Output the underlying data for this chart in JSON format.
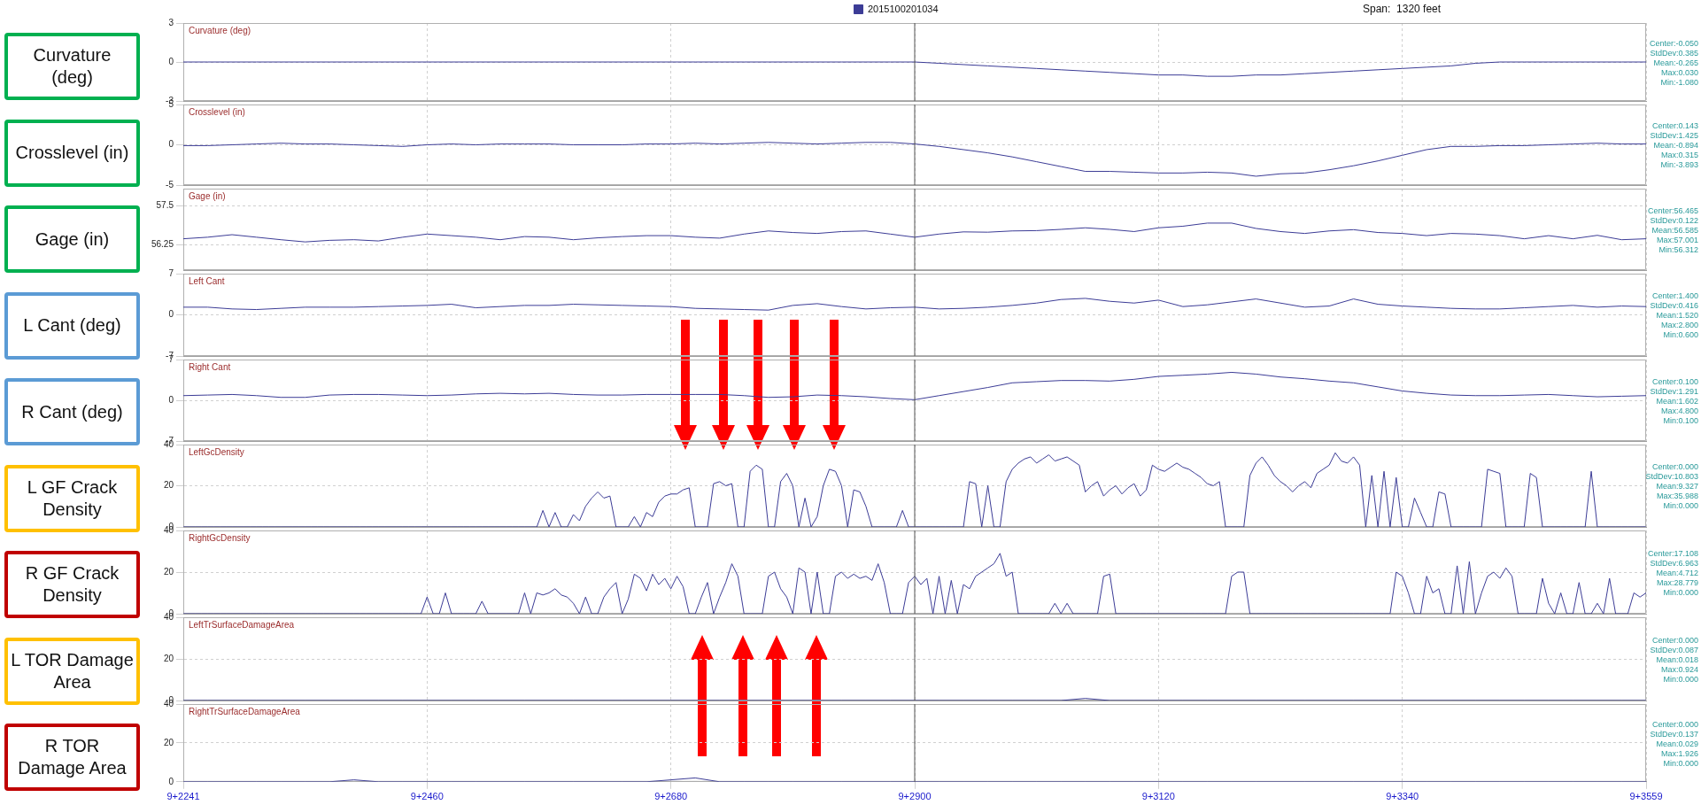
{
  "chart_data": [
    {
      "type": "line",
      "title": "Curvature (deg)",
      "subtitle": "Span:  1320 feet",
      "ylabel": "Curvature (deg)",
      "legend": "top",
      "grid": true,
      "tick_labels": "y",
      "ylim": [
        -3,
        3
      ],
      "yticks": [
        -3,
        0,
        3
      ],
      "categories": [
        "9+2241",
        null,
        null,
        null,
        null,
        null,
        null,
        null,
        null,
        null,
        "9+2460",
        null,
        null,
        null,
        null,
        null,
        null,
        null,
        null,
        null,
        "9+2680",
        null,
        null,
        null,
        null,
        null,
        null,
        null,
        null,
        null,
        "9+2900",
        null,
        null,
        null,
        null,
        null,
        null,
        null,
        null,
        null,
        "9+3120",
        null,
        null,
        null,
        null,
        null,
        null,
        null,
        null,
        null,
        "9+3340",
        null,
        null,
        null,
        null,
        null,
        null,
        null,
        null,
        null,
        "9+3559"
      ],
      "series": [
        {
          "name": "2015100201034",
          "color": "#3c3c96",
          "values": [
            0,
            0,
            0,
            0,
            0,
            0,
            0,
            0,
            0,
            0,
            0,
            0,
            0,
            0,
            0,
            0,
            0,
            0,
            0,
            0,
            0,
            0,
            0,
            0,
            0,
            0,
            0,
            0,
            0,
            0,
            0,
            -0.1,
            -0.2,
            -0.3,
            -0.4,
            -0.5,
            -0.6,
            -0.7,
            -0.8,
            -0.9,
            -1.0,
            -1.0,
            -1.1,
            -1.1,
            -1.0,
            -1.0,
            -0.9,
            -0.8,
            -0.7,
            -0.6,
            -0.5,
            -0.4,
            -0.3,
            -0.1,
            0,
            0,
            0,
            0,
            0,
            0,
            0
          ]
        }
      ],
      "ref_lines": [
        {
          "axis": "x",
          "value": "9+2900",
          "color": "#555555"
        }
      ],
      "annotations": [
        "Center:-0.050",
        "StdDev:0.385",
        "Mean:-0.265",
        "Max:0.030",
        "Min:-1.080"
      ]
    },
    {
      "type": "line",
      "title": "Crosslevel (in)",
      "ylabel": "Crosslevel (in)",
      "grid": true,
      "tick_labels": "y",
      "ylim": [
        -5,
        5
      ],
      "yticks": [
        -5,
        0,
        5
      ],
      "categories": [
        "9+2241",
        null,
        null,
        null,
        null,
        null,
        null,
        null,
        null,
        null,
        "9+2460",
        null,
        null,
        null,
        null,
        null,
        null,
        null,
        null,
        null,
        "9+2680",
        null,
        null,
        null,
        null,
        null,
        null,
        null,
        null,
        null,
        "9+2900",
        null,
        null,
        null,
        null,
        null,
        null,
        null,
        null,
        null,
        "9+3120",
        null,
        null,
        null,
        null,
        null,
        null,
        null,
        null,
        null,
        "9+3340",
        null,
        null,
        null,
        null,
        null,
        null,
        null,
        null,
        null,
        "9+3559"
      ],
      "color": "#3c3c96",
      "values": [
        -0.1,
        -0.1,
        0,
        0.1,
        0.2,
        0.1,
        0.1,
        0,
        -0.1,
        -0.2,
        0,
        0.1,
        0,
        0.1,
        0.1,
        0.1,
        0,
        0,
        0,
        0.1,
        0.1,
        0.2,
        0.1,
        0.2,
        0.3,
        0.2,
        0.1,
        0.2,
        0.3,
        0.3,
        0.1,
        -0.2,
        -0.6,
        -1.0,
        -1.5,
        -2.1,
        -2.7,
        -3.3,
        -3.3,
        -3.4,
        -3.5,
        -3.5,
        -3.4,
        -3.5,
        -3.9,
        -3.6,
        -3.5,
        -3.1,
        -2.6,
        -2.0,
        -1.3,
        -0.6,
        -0.2,
        -0.2,
        -0.1,
        -0.1,
        0,
        0.1,
        0.2,
        0.1,
        0.1
      ],
      "ref_lines": [
        {
          "axis": "x",
          "value": "9+2900",
          "color": "#555555"
        }
      ],
      "annotations": [
        "Center:0.143",
        "StdDev:1.425",
        "Mean:-0.894",
        "Max:0.315",
        "Min:-3.893"
      ]
    },
    {
      "type": "line",
      "title": "Gage (in)",
      "ylabel": "Gage (in)",
      "grid": true,
      "tick_labels": "y",
      "ylim": [
        55.45,
        58.05
      ],
      "yticks": [
        56.25,
        57.5
      ],
      "categories": [
        "9+2241",
        null,
        null,
        null,
        null,
        null,
        null,
        null,
        null,
        null,
        "9+2460",
        null,
        null,
        null,
        null,
        null,
        null,
        null,
        null,
        null,
        "9+2680",
        null,
        null,
        null,
        null,
        null,
        null,
        null,
        null,
        null,
        "9+2900",
        null,
        null,
        null,
        null,
        null,
        null,
        null,
        null,
        null,
        "9+3120",
        null,
        null,
        null,
        null,
        null,
        null,
        null,
        null,
        null,
        "9+3340",
        null,
        null,
        null,
        null,
        null,
        null,
        null,
        null,
        null,
        "9+3559"
      ],
      "color": "#3c3c96",
      "values": [
        56.45,
        56.5,
        56.58,
        56.5,
        56.42,
        56.35,
        56.4,
        56.42,
        56.38,
        56.5,
        56.6,
        56.55,
        56.5,
        56.42,
        56.52,
        56.5,
        56.42,
        56.48,
        56.52,
        56.55,
        56.55,
        56.5,
        56.47,
        56.6,
        56.7,
        56.65,
        56.62,
        56.68,
        56.7,
        56.6,
        56.5,
        56.6,
        56.67,
        56.66,
        56.7,
        56.71,
        56.75,
        56.8,
        56.75,
        56.68,
        56.8,
        56.85,
        56.95,
        56.95,
        56.78,
        56.68,
        56.62,
        56.7,
        56.74,
        56.65,
        56.62,
        56.55,
        56.62,
        56.6,
        56.55,
        56.45,
        56.55,
        56.45,
        56.56,
        56.42,
        56.45
      ],
      "ref_lines": [
        {
          "axis": "x",
          "value": "9+2900",
          "color": "#555555"
        }
      ],
      "annotations": [
        "Center:56.465",
        "StdDev:0.122",
        "Mean:56.585",
        "Max:57.001",
        "Min:56.312"
      ]
    },
    {
      "type": "line",
      "title": "Left Cant",
      "ylabel": "L Cant (deg)",
      "grid": true,
      "tick_labels": "y",
      "ylim": [
        -7,
        7
      ],
      "yticks": [
        -7,
        0,
        7
      ],
      "categories": [
        "9+2241",
        null,
        null,
        null,
        null,
        null,
        null,
        null,
        null,
        null,
        "9+2460",
        null,
        null,
        null,
        null,
        null,
        null,
        null,
        null,
        null,
        "9+2680",
        null,
        null,
        null,
        null,
        null,
        null,
        null,
        null,
        null,
        "9+2900",
        null,
        null,
        null,
        null,
        null,
        null,
        null,
        null,
        null,
        "9+3120",
        null,
        null,
        null,
        null,
        null,
        null,
        null,
        null,
        null,
        "9+3340",
        null,
        null,
        null,
        null,
        null,
        null,
        null,
        null,
        null,
        "9+3559"
      ],
      "color": "#3c3c96",
      "values": [
        1.3,
        1.3,
        1.0,
        0.9,
        1.1,
        1.3,
        1.3,
        1.3,
        1.4,
        1.5,
        1.6,
        1.8,
        1.2,
        1.4,
        1.6,
        1.6,
        1.8,
        1.7,
        1.6,
        1.5,
        1.4,
        1.1,
        1.0,
        0.9,
        0.8,
        1.6,
        1.9,
        1.4,
        1.0,
        1.2,
        1.3,
        1.0,
        1.1,
        1.3,
        1.6,
        2.0,
        2.6,
        2.8,
        2.3,
        2.0,
        2.5,
        1.4,
        1.7,
        2.2,
        2.7,
        2.0,
        1.3,
        1.5,
        2.7,
        1.8,
        1.5,
        1.3,
        1.1,
        1.0,
        1.0,
        1.2,
        1.4,
        1.6,
        1.3,
        1.5,
        1.4
      ],
      "ref_lines": [
        {
          "axis": "x",
          "value": "9+2900",
          "color": "#555555"
        }
      ],
      "annotations": [
        "Center:1.400",
        "StdDev:0.416",
        "Mean:1.520",
        "Max:2.800",
        "Min:0.600"
      ]
    },
    {
      "type": "line",
      "title": "Right Cant",
      "ylabel": "R Cant (deg)",
      "grid": true,
      "tick_labels": "y",
      "ylim": [
        -7,
        7
      ],
      "yticks": [
        -7,
        0,
        7
      ],
      "categories": [
        "9+2241",
        null,
        null,
        null,
        null,
        null,
        null,
        null,
        null,
        null,
        "9+2460",
        null,
        null,
        null,
        null,
        null,
        null,
        null,
        null,
        null,
        "9+2680",
        null,
        null,
        null,
        null,
        null,
        null,
        null,
        null,
        null,
        "9+2900",
        null,
        null,
        null,
        null,
        null,
        null,
        null,
        null,
        null,
        "9+3120",
        null,
        null,
        null,
        null,
        null,
        null,
        null,
        null,
        null,
        "9+3340",
        null,
        null,
        null,
        null,
        null,
        null,
        null,
        null,
        null,
        "9+3559"
      ],
      "color": "#3c3c96",
      "values": [
        0.8,
        0.9,
        1.0,
        0.8,
        0.5,
        0.5,
        0.9,
        1.0,
        1.0,
        0.9,
        0.8,
        0.9,
        1.1,
        1.2,
        1.1,
        1.2,
        1.0,
        0.9,
        0.9,
        1.0,
        1.0,
        1.0,
        1.0,
        0.8,
        0.5,
        0.6,
        0.9,
        0.8,
        0.6,
        0.3,
        0.1,
        0.8,
        1.5,
        2.2,
        3.0,
        3.2,
        3.4,
        3.4,
        3.3,
        3.6,
        4.1,
        4.3,
        4.5,
        4.8,
        4.5,
        4.0,
        3.7,
        3.3,
        3.0,
        2.3,
        1.6,
        1.2,
        0.9,
        0.8,
        0.8,
        0.9,
        1.0,
        0.8,
        0.6,
        0.7,
        0.8
      ],
      "ref_lines": [
        {
          "axis": "x",
          "value": "9+2900",
          "color": "#555555"
        }
      ],
      "annotations": [
        "Center:0.100",
        "StdDev:1.291",
        "Mean:1.602",
        "Max:4.800",
        "Min:0.100"
      ]
    },
    {
      "type": "line",
      "title": "LeftGcDensity",
      "ylabel": "L GF Crack Density",
      "grid": true,
      "tick_labels": "y",
      "ylim": [
        0,
        40
      ],
      "yticks": [
        0,
        20,
        40
      ],
      "categories": [
        "9+2241",
        null,
        null,
        null,
        null,
        null,
        null,
        null,
        null,
        null,
        null,
        null,
        null,
        null,
        null,
        null,
        null,
        null,
        null,
        null,
        null,
        null,
        null,
        null,
        null,
        null,
        null,
        null,
        null,
        null,
        null,
        null,
        null,
        null,
        null,
        null,
        null,
        null,
        null,
        null,
        "9+2460",
        null,
        null,
        null,
        null,
        null,
        null,
        null,
        null,
        null,
        null,
        null,
        null,
        null,
        null,
        null,
        null,
        null,
        null,
        null,
        null,
        null,
        null,
        null,
        null,
        null,
        null,
        null,
        null,
        null,
        null,
        null,
        null,
        null,
        null,
        null,
        null,
        null,
        null,
        null,
        "9+2680",
        null,
        null,
        null,
        null,
        null,
        null,
        null,
        null,
        null,
        null,
        null,
        null,
        null,
        null,
        null,
        null,
        null,
        null,
        null,
        null,
        null,
        null,
        null,
        null,
        null,
        null,
        null,
        null,
        null,
        null,
        null,
        null,
        null,
        null,
        null,
        null,
        null,
        null,
        null,
        "9+2900",
        null,
        null,
        null,
        null,
        null,
        null,
        null,
        null,
        null,
        null,
        null,
        null,
        null,
        null,
        null,
        null,
        null,
        null,
        null,
        null,
        null,
        null,
        null,
        null,
        null,
        null,
        null,
        null,
        null,
        null,
        null,
        null,
        null,
        null,
        null,
        null,
        null,
        null,
        null,
        "9+3120",
        null,
        null,
        null,
        null,
        null,
        null,
        null,
        null,
        null,
        null,
        null,
        null,
        null,
        null,
        null,
        null,
        null,
        null,
        null,
        null,
        null,
        null,
        null,
        null,
        null,
        null,
        null,
        null,
        null,
        null,
        null,
        null,
        null,
        null,
        null,
        null,
        null,
        null,
        null,
        "9+3340",
        null,
        null,
        null,
        null,
        null,
        null,
        null,
        null,
        null,
        null,
        null,
        null,
        null,
        null,
        null,
        null,
        null,
        null,
        null,
        null,
        null,
        null,
        null,
        null,
        null,
        null,
        null,
        null,
        null,
        null,
        null,
        null,
        null,
        null,
        null,
        null,
        null,
        null,
        null,
        "9+3559"
      ],
      "color": "#3c3c96",
      "values": [
        0,
        0,
        0,
        0,
        0,
        0,
        0,
        0,
        0,
        0,
        0,
        0,
        0,
        0,
        0,
        0,
        0,
        0,
        0,
        0,
        0,
        0,
        0,
        0,
        0,
        0,
        0,
        0,
        0,
        0,
        0,
        0,
        0,
        0,
        0,
        0,
        0,
        0,
        0,
        0,
        0,
        0,
        0,
        0,
        0,
        0,
        0,
        0,
        0,
        0,
        0,
        0,
        0,
        0,
        0,
        0,
        0,
        0,
        0,
        8,
        0,
        7,
        0,
        0,
        6,
        3,
        10,
        14,
        17,
        14,
        15,
        0,
        0,
        0,
        5,
        0,
        7,
        5,
        12,
        15,
        16,
        16,
        18,
        19,
        0,
        0,
        0,
        21,
        22,
        20,
        21,
        0,
        0,
        27,
        30,
        28,
        0,
        0,
        22,
        26,
        20,
        0,
        14,
        0,
        5,
        20,
        28,
        27,
        20,
        0,
        18,
        17,
        10,
        0,
        0,
        0,
        0,
        0,
        8,
        0,
        0,
        0,
        0,
        0,
        0,
        0,
        0,
        0,
        0,
        22,
        21,
        0,
        20,
        0,
        0,
        22,
        28,
        31,
        33,
        34,
        31,
        33,
        35,
        32,
        33,
        34,
        32,
        30,
        17,
        20,
        22,
        15,
        18,
        20,
        16,
        19,
        21,
        15,
        18,
        30,
        28,
        27,
        29,
        31,
        29,
        28,
        26,
        24,
        21,
        20,
        22,
        0,
        0,
        0,
        0,
        25,
        31,
        34,
        30,
        25,
        22,
        20,
        17,
        20,
        22,
        19,
        26,
        28,
        30,
        36,
        32,
        31,
        34,
        30,
        0,
        25,
        0,
        27,
        0,
        24,
        0,
        0,
        14,
        7,
        0,
        0,
        17,
        16,
        0,
        0,
        0,
        0,
        0,
        0,
        28,
        27,
        26,
        0,
        0,
        0,
        0,
        26,
        24,
        0,
        0,
        0,
        0,
        0,
        0,
        0,
        0,
        27,
        0,
        0,
        0,
        0,
        0,
        0,
        0,
        0,
        0
      ],
      "ref_lines": [
        {
          "axis": "x",
          "value": "9+2900",
          "color": "#555555"
        }
      ],
      "annotations": [
        "Center:0.000",
        "StdDev:10.803",
        "Mean:9.327",
        "Max:35.988",
        "Min:0.000"
      ]
    },
    {
      "type": "line",
      "title": "RightGcDensity",
      "ylabel": "R GF Crack Density",
      "grid": true,
      "tick_labels": "y",
      "ylim": [
        0,
        40
      ],
      "yticks": [
        0,
        20,
        40
      ],
      "categories": [
        "9+2241",
        null,
        null,
        null,
        null,
        null,
        null,
        null,
        null,
        null,
        null,
        null,
        null,
        null,
        null,
        null,
        null,
        null,
        null,
        null,
        null,
        null,
        null,
        null,
        null,
        null,
        null,
        null,
        null,
        null,
        null,
        null,
        null,
        null,
        null,
        null,
        null,
        null,
        null,
        null,
        "9+2460",
        null,
        null,
        null,
        null,
        null,
        null,
        null,
        null,
        null,
        null,
        null,
        null,
        null,
        null,
        null,
        null,
        null,
        null,
        null,
        null,
        null,
        null,
        null,
        null,
        null,
        null,
        null,
        null,
        null,
        null,
        null,
        null,
        null,
        null,
        null,
        null,
        null,
        null,
        null,
        "9+2680",
        null,
        null,
        null,
        null,
        null,
        null,
        null,
        null,
        null,
        null,
        null,
        null,
        null,
        null,
        null,
        null,
        null,
        null,
        null,
        null,
        null,
        null,
        null,
        null,
        null,
        null,
        null,
        null,
        null,
        null,
        null,
        null,
        null,
        null,
        null,
        null,
        null,
        null,
        null,
        "9+2900",
        null,
        null,
        null,
        null,
        null,
        null,
        null,
        null,
        null,
        null,
        null,
        null,
        null,
        null,
        null,
        null,
        null,
        null,
        null,
        null,
        null,
        null,
        null,
        null,
        null,
        null,
        null,
        null,
        null,
        null,
        null,
        null,
        null,
        null,
        null,
        null,
        null,
        null,
        null,
        "9+3120",
        null,
        null,
        null,
        null,
        null,
        null,
        null,
        null,
        null,
        null,
        null,
        null,
        null,
        null,
        null,
        null,
        null,
        null,
        null,
        null,
        null,
        null,
        null,
        null,
        null,
        null,
        null,
        null,
        null,
        null,
        null,
        null,
        null,
        null,
        null,
        null,
        null,
        null,
        null,
        "9+3340",
        null,
        null,
        null,
        null,
        null,
        null,
        null,
        null,
        null,
        null,
        null,
        null,
        null,
        null,
        null,
        null,
        null,
        null,
        null,
        null,
        null,
        null,
        null,
        null,
        null,
        null,
        null,
        null,
        null,
        null,
        null,
        null,
        null,
        null,
        null,
        null,
        null,
        null,
        null,
        "9+3559"
      ],
      "color": "#3c3c96",
      "values": [
        0,
        0,
        0,
        0,
        0,
        0,
        0,
        0,
        0,
        0,
        0,
        0,
        0,
        0,
        0,
        0,
        0,
        0,
        0,
        0,
        0,
        0,
        0,
        0,
        0,
        0,
        0,
        0,
        0,
        0,
        0,
        0,
        0,
        0,
        0,
        0,
        0,
        0,
        0,
        0,
        8,
        0,
        0,
        10,
        0,
        0,
        0,
        0,
        0,
        6,
        0,
        0,
        0,
        0,
        0,
        0,
        10,
        0,
        10,
        9,
        10,
        12,
        9,
        8,
        5,
        0,
        8,
        0,
        0,
        8,
        12,
        15,
        0,
        7,
        19,
        17,
        11,
        19,
        14,
        17,
        12,
        18,
        13,
        0,
        0,
        8,
        15,
        0,
        8,
        15,
        24,
        18,
        0,
        0,
        0,
        0,
        18,
        20,
        12,
        8,
        0,
        22,
        20,
        0,
        20,
        0,
        0,
        18,
        20,
        17,
        19,
        17,
        18,
        16,
        24,
        15,
        0,
        0,
        0,
        15,
        18,
        14,
        17,
        0,
        18,
        0,
        16,
        0,
        14,
        12,
        18,
        20,
        22,
        24,
        29,
        18,
        20,
        0,
        0,
        0,
        0,
        0,
        0,
        5,
        0,
        5,
        0,
        0,
        0,
        0,
        0,
        18,
        19,
        0,
        0,
        0,
        0,
        0,
        0,
        0,
        0,
        0,
        0,
        0,
        0,
        0,
        0,
        0,
        0,
        0,
        0,
        0,
        18,
        20,
        20,
        0,
        0,
        0,
        0,
        0,
        0,
        0,
        0,
        0,
        0,
        0,
        0,
        0,
        0,
        0,
        0,
        0,
        0,
        0,
        0,
        0,
        0,
        0,
        0,
        20,
        18,
        10,
        0,
        0,
        18,
        10,
        12,
        0,
        0,
        23,
        0,
        25,
        0,
        10,
        18,
        20,
        17,
        22,
        18,
        0,
        0,
        0,
        0,
        17,
        5,
        0,
        10,
        0,
        0,
        15,
        0,
        0,
        5,
        0,
        17,
        0,
        0,
        0,
        10,
        8,
        10
      ],
      "ref_lines": [
        {
          "axis": "x",
          "value": "9+2900",
          "color": "#555555"
        }
      ],
      "annotations": [
        "Center:17.108",
        "StdDev:6.963",
        "Mean:4.712",
        "Max:28.779",
        "Min:0.000"
      ]
    },
    {
      "type": "line",
      "title": "LeftTrSurfaceDamageArea",
      "ylabel": "L TOR Damage Area",
      "grid": true,
      "tick_labels": "y",
      "ylim": [
        0,
        40
      ],
      "yticks": [
        0,
        20,
        40
      ],
      "categories": [
        "9+2241",
        null,
        null,
        null,
        null,
        null,
        null,
        null,
        null,
        null,
        "9+2460",
        null,
        null,
        null,
        null,
        null,
        null,
        null,
        null,
        null,
        "9+2680",
        null,
        null,
        null,
        null,
        null,
        null,
        null,
        null,
        null,
        "9+2900",
        null,
        null,
        null,
        null,
        null,
        null,
        null,
        null,
        null,
        "9+3120",
        null,
        null,
        null,
        null,
        null,
        null,
        null,
        null,
        null,
        "9+3340",
        null,
        null,
        null,
        null,
        null,
        null,
        null,
        null,
        null,
        "9+3559"
      ],
      "color": "#3c3c96",
      "values": [
        0,
        0,
        0,
        0,
        0,
        0,
        0,
        0,
        0,
        0,
        0,
        0,
        0,
        0,
        0,
        0,
        0,
        0,
        0,
        0,
        0,
        0,
        0,
        0,
        0,
        0,
        0,
        0,
        0,
        0,
        0,
        0,
        0,
        0,
        0,
        0,
        0,
        1,
        0,
        0,
        0,
        0,
        0,
        0,
        0,
        0,
        0,
        0,
        0,
        0,
        0,
        0,
        0,
        0,
        0,
        0,
        0,
        0,
        0,
        0,
        0
      ],
      "ref_lines": [
        {
          "axis": "x",
          "value": "9+2900",
          "color": "#555555"
        }
      ],
      "annotations": [
        "Center:0.000",
        "StdDev:0.087",
        "Mean:0.018",
        "Max:0.924",
        "Min:0.000"
      ]
    },
    {
      "type": "line",
      "title": "RightTrSurfaceDamageArea",
      "ylabel": "R TOR Damage Area",
      "grid": true,
      "ylim": [
        0,
        40
      ],
      "yticks": [
        0,
        20,
        40
      ],
      "categories": [
        "9+2241",
        null,
        null,
        null,
        null,
        null,
        null,
        null,
        null,
        null,
        "9+2460",
        null,
        null,
        null,
        null,
        null,
        null,
        null,
        null,
        null,
        "9+2680",
        null,
        null,
        null,
        null,
        null,
        null,
        null,
        null,
        null,
        "9+2900",
        null,
        null,
        null,
        null,
        null,
        null,
        null,
        null,
        null,
        "9+3120",
        null,
        null,
        null,
        null,
        null,
        null,
        null,
        null,
        null,
        "9+3340",
        null,
        null,
        null,
        null,
        null,
        null,
        null,
        null,
        null,
        "9+3559"
      ],
      "color": "#3c3c96",
      "values": [
        0,
        0,
        0,
        0,
        0,
        0,
        0,
        1,
        0,
        0,
        0,
        0,
        0,
        0,
        0,
        0,
        0,
        0,
        0,
        0,
        1,
        2,
        0,
        0,
        0,
        0,
        0,
        0,
        0,
        0,
        0,
        0,
        0,
        0,
        0,
        0,
        0,
        0,
        0,
        0,
        0,
        0,
        0,
        0,
        0,
        0,
        0,
        0,
        0,
        0,
        0,
        0,
        0,
        0,
        0,
        0,
        0,
        0,
        0,
        0,
        0
      ],
      "ref_lines": [
        {
          "axis": "x",
          "value": "9+2900",
          "color": "#555555"
        }
      ],
      "annotations": [
        "Center:0.000",
        "StdDev:0.137",
        "Mean:0.029",
        "Max:1.926",
        "Min:0.000"
      ]
    }
  ]
}
